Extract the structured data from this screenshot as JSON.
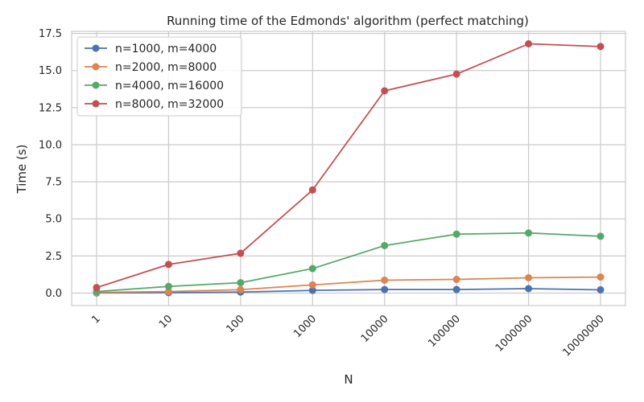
{
  "chart_data": {
    "type": "line",
    "title": "Running time of the Edmonds' algorithm (perfect matching)",
    "xlabel": "N",
    "ylabel": "Time (s)",
    "categories": [
      "1",
      "10",
      "100",
      "1000",
      "10000",
      "100000",
      "1000000",
      "10000000"
    ],
    "ylim": [
      -0.84,
      17.64
    ],
    "yticks": [
      0.0,
      2.5,
      5.0,
      7.5,
      10.0,
      12.5,
      15.0,
      17.5
    ],
    "ytick_labels": [
      "0.0",
      "2.5",
      "5.0",
      "7.5",
      "10.0",
      "12.5",
      "15.0",
      "17.5"
    ],
    "grid": true,
    "legend_position": "top-left",
    "series": [
      {
        "name": "n=1000, m=4000",
        "color": "#4c72b0",
        "values": [
          0.01,
          0.03,
          0.07,
          0.18,
          0.24,
          0.24,
          0.3,
          0.22
        ]
      },
      {
        "name": "n=2000, m=8000",
        "color": "#dd8452",
        "values": [
          0.04,
          0.1,
          0.23,
          0.55,
          0.87,
          0.92,
          1.03,
          1.08
        ]
      },
      {
        "name": "n=4000, m=16000",
        "color": "#55a868",
        "values": [
          0.1,
          0.45,
          0.7,
          1.65,
          3.2,
          3.97,
          4.05,
          3.83
        ]
      },
      {
        "name": "n=8000, m=32000",
        "color": "#c44e52",
        "values": [
          0.37,
          1.93,
          2.68,
          6.95,
          13.63,
          14.76,
          16.8,
          16.62
        ]
      }
    ]
  }
}
